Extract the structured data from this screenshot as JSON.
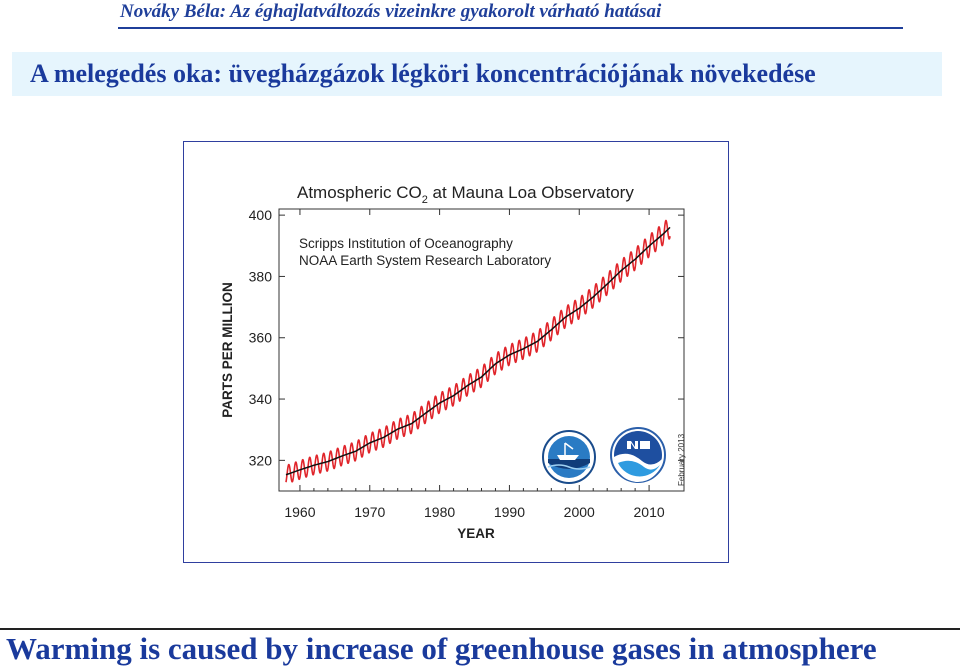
{
  "header": {
    "author": "Nováky Béla: Az éghajlatváltozás vizeinkre gyakorolt várható hatásai"
  },
  "slide": {
    "title": "A melegedés oka: üvegházgázok légköri koncentrációjának növekedése",
    "caption": "Warming is caused by increase of greenhouse gases in atmosphere"
  },
  "chart_data": {
    "type": "line",
    "title": "Atmospheric CO",
    "title_subscript": "2",
    "title_suffix": " at Mauna Loa Observatory",
    "sources": [
      "Scripps Institution of Oceanography",
      "NOAA Earth System Research Laboratory"
    ],
    "xlabel": "YEAR",
    "ylabel": "PARTS PER MILLION",
    "date_note": "February 2013",
    "xlim": [
      1957,
      2015
    ],
    "ylim": [
      310,
      402
    ],
    "xticks": [
      1960,
      1970,
      1980,
      1990,
      2000,
      2010
    ],
    "yticks": [
      320,
      340,
      360,
      380,
      400
    ],
    "series": [
      {
        "color": "#e0242a",
        "style": "seasonal",
        "x": [
          1958,
          1960,
          1962,
          1964,
          1966,
          1968,
          1970,
          1972,
          1974,
          1976,
          1978,
          1980,
          1982,
          1984,
          1986,
          1988,
          1990,
          1992,
          1994,
          1996,
          1998,
          2000,
          2002,
          2004,
          2006,
          2008,
          2010,
          2012,
          2013
        ],
        "values": [
          315.3,
          316.9,
          318.4,
          319.6,
          321.4,
          323.0,
          325.7,
          327.5,
          330.2,
          332.0,
          335.4,
          338.7,
          341.1,
          344.4,
          347.2,
          351.5,
          354.4,
          356.4,
          358.8,
          362.6,
          366.7,
          369.6,
          373.3,
          377.5,
          381.9,
          385.6,
          389.9,
          393.8,
          396.0
        ]
      },
      {
        "color": "#111111",
        "style": "trend",
        "x": [
          1958,
          1960,
          1962,
          1964,
          1966,
          1968,
          1970,
          1972,
          1974,
          1976,
          1978,
          1980,
          1982,
          1984,
          1986,
          1988,
          1990,
          1992,
          1994,
          1996,
          1998,
          2000,
          2002,
          2004,
          2006,
          2008,
          2010,
          2012,
          2013
        ],
        "values": [
          315.3,
          316.9,
          318.4,
          319.6,
          321.4,
          323.0,
          325.7,
          327.5,
          330.2,
          332.0,
          335.4,
          338.7,
          341.1,
          344.4,
          347.2,
          351.5,
          354.4,
          356.4,
          358.8,
          362.6,
          366.7,
          369.6,
          373.3,
          377.5,
          381.9,
          385.6,
          389.9,
          393.8,
          396.0
        ]
      }
    ],
    "logos": [
      "scripps-logo",
      "noaa-logo"
    ]
  }
}
